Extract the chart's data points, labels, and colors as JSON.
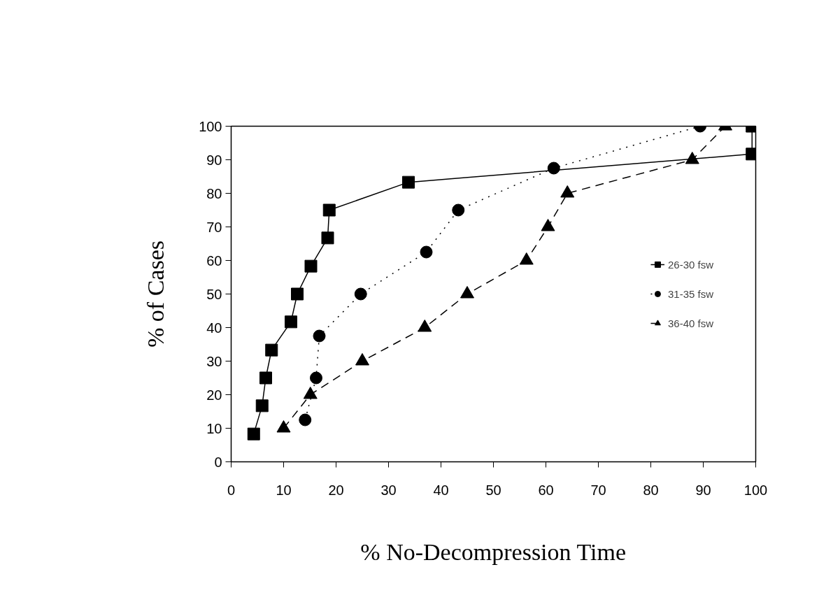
{
  "chart_data": {
    "type": "line",
    "xlabel": "% No-Decompression Time",
    "ylabel": "% of Cases",
    "xlim": [
      0,
      100
    ],
    "ylim": [
      0,
      100
    ],
    "xticks": [
      0,
      10,
      20,
      30,
      40,
      50,
      60,
      70,
      80,
      90,
      100
    ],
    "yticks": [
      0,
      10,
      20,
      30,
      40,
      50,
      60,
      70,
      80,
      90,
      100
    ],
    "grid": false,
    "legend": "right",
    "series": [
      {
        "name": "26-30 fsw",
        "color": "#000000",
        "marker": "square",
        "line_style": "solid",
        "x": [
          4.3,
          5.9,
          6.6,
          7.7,
          11.4,
          12.6,
          15.2,
          18.4,
          18.7,
          33.8,
          99.3,
          99.3
        ],
        "values": [
          8.3,
          16.7,
          25,
          33.3,
          41.7,
          50,
          58.3,
          66.7,
          75,
          83.3,
          91.7,
          100
        ]
      },
      {
        "name": "31-35 fsw",
        "color": "#000000",
        "marker": "circle",
        "line_style": "dotted",
        "x": [
          14.1,
          16.2,
          16.8,
          24.7,
          37.2,
          43.3,
          61.5,
          89.4
        ],
        "values": [
          12.5,
          25,
          37.5,
          50,
          62.5,
          75,
          87.5,
          100
        ]
      },
      {
        "name": "36-40 fsw",
        "color": "#000000",
        "marker": "triangle",
        "line_style": "dashed",
        "x": [
          10.0,
          15.1,
          25.0,
          36.9,
          45.0,
          56.3,
          60.4,
          64.1,
          87.9,
          94.2
        ],
        "values": [
          10,
          20,
          30,
          40,
          50,
          60,
          70,
          80,
          90,
          100
        ]
      }
    ]
  }
}
